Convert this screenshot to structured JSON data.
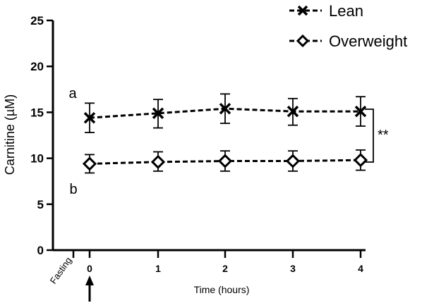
{
  "chart_data": {
    "type": "line",
    "title": "",
    "xlabel": "Time (hours)",
    "ylabel": "Carnitine (µM)",
    "ylim": [
      0,
      25
    ],
    "yticks": [
      0,
      5,
      10,
      15,
      20,
      25
    ],
    "xcategories": [
      "Fasting",
      "0",
      "1",
      "2",
      "3",
      "4"
    ],
    "grid": false,
    "legend_position": "top-right",
    "series": [
      {
        "name": "Lean",
        "marker": "x",
        "line_style": "dashed",
        "x": [
          "0",
          "1",
          "2",
          "3",
          "4"
        ],
        "values": [
          14.4,
          14.9,
          15.4,
          15.1,
          15.1
        ],
        "error_low": [
          12.8,
          13.3,
          13.8,
          13.6,
          13.5
        ],
        "error_high": [
          16.0,
          16.4,
          17.0,
          16.5,
          16.7
        ]
      },
      {
        "name": "Overweight",
        "marker": "diamond",
        "line_style": "dashed",
        "x": [
          "0",
          "1",
          "2",
          "3",
          "4"
        ],
        "values": [
          9.4,
          9.6,
          9.7,
          9.7,
          9.8
        ],
        "error_low": [
          8.4,
          8.6,
          8.6,
          8.6,
          8.7
        ],
        "error_high": [
          10.4,
          10.7,
          10.8,
          10.8,
          10.9
        ]
      }
    ],
    "annotations": {
      "lean_letter": "a",
      "overweight_letter": "b",
      "significance": "**"
    },
    "colors": {
      "lines": "#000000",
      "background": "#ffffff"
    }
  }
}
